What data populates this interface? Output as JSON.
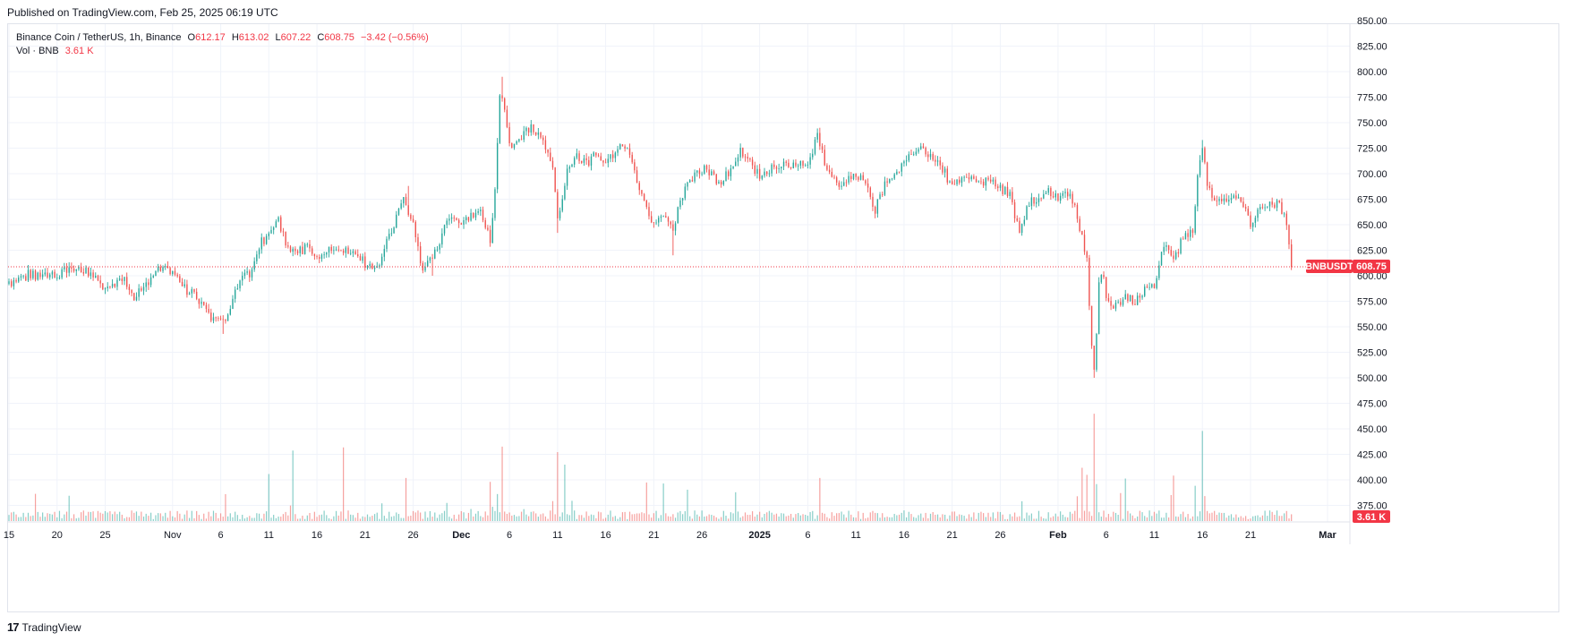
{
  "header": {
    "published": "Published on TradingView.com, Feb 25, 2025 06:19 UTC"
  },
  "legend": {
    "symbol": "Binance Coin / TetherUS, 1h, Binance",
    "o_label": "O",
    "o_value": "612.17",
    "h_label": "H",
    "h_value": "613.02",
    "l_label": "L",
    "l_value": "607.22",
    "c_label": "C",
    "c_value": "608.75",
    "change": "−3.42 (−0.56%)",
    "vol_label": "Vol · BNB",
    "vol_value": "3.61 K"
  },
  "price_tag": {
    "symbol": "BNBUSDT",
    "value": "608.75"
  },
  "volume_tag": {
    "value": "3.61 K"
  },
  "footer": {
    "logo": "17",
    "brand": "TradingView"
  },
  "colors": {
    "up": "#26a69a",
    "down": "#ef5350",
    "last": "#f23645",
    "grid": "#f0f3fa"
  },
  "chart_data": {
    "type": "candlestick",
    "symbol": "BNBUSDT",
    "interval": "1h",
    "y_axis": {
      "range": [
        350,
        850
      ],
      "ticks": [
        850,
        825,
        800,
        775,
        750,
        725,
        700,
        675,
        650,
        625,
        600,
        575,
        550,
        525,
        500,
        475,
        450,
        425,
        400,
        375
      ],
      "tick_labels": [
        "850.00",
        "825.00",
        "800.00",
        "775.00",
        "750.00",
        "725.00",
        "700.00",
        "675.00",
        "650.00",
        "625.00",
        "600.00",
        "575.00",
        "550.00",
        "525.00",
        "500.00",
        "475.00",
        "450.00",
        "425.00",
        "400.00",
        "375.00"
      ]
    },
    "x_axis": {
      "labels": [
        {
          "day": 0,
          "label": "15"
        },
        {
          "day": 5,
          "label": "20"
        },
        {
          "day": 10,
          "label": "25"
        },
        {
          "day": 17,
          "label": "Nov"
        },
        {
          "day": 22,
          "label": "6"
        },
        {
          "day": 27,
          "label": "11"
        },
        {
          "day": 32,
          "label": "16"
        },
        {
          "day": 37,
          "label": "21"
        },
        {
          "day": 42,
          "label": "26"
        },
        {
          "day": 47,
          "label": "Dec",
          "bold": true
        },
        {
          "day": 52,
          "label": "6"
        },
        {
          "day": 57,
          "label": "11"
        },
        {
          "day": 62,
          "label": "16"
        },
        {
          "day": 67,
          "label": "21"
        },
        {
          "day": 72,
          "label": "26"
        },
        {
          "day": 78,
          "label": "2025",
          "bold": true
        },
        {
          "day": 83,
          "label": "6"
        },
        {
          "day": 88,
          "label": "11"
        },
        {
          "day": 93,
          "label": "16"
        },
        {
          "day": 98,
          "label": "21"
        },
        {
          "day": 103,
          "label": "26"
        },
        {
          "day": 109,
          "label": "Feb",
          "bold": true
        },
        {
          "day": 114,
          "label": "6"
        },
        {
          "day": 119,
          "label": "11"
        },
        {
          "day": 124,
          "label": "16"
        },
        {
          "day": 129,
          "label": "21"
        },
        {
          "day": 137,
          "label": "Mar",
          "bold": true
        }
      ],
      "last_day": 133.3,
      "end_day": 140
    },
    "close_path": [
      {
        "d": 0,
        "p": 592
      },
      {
        "d": 2,
        "p": 601
      },
      {
        "d": 4,
        "p": 598
      },
      {
        "d": 6,
        "p": 604
      },
      {
        "d": 7,
        "p": 610
      },
      {
        "d": 9,
        "p": 598
      },
      {
        "d": 10,
        "p": 588
      },
      {
        "d": 12,
        "p": 595
      },
      {
        "d": 13,
        "p": 580
      },
      {
        "d": 15,
        "p": 598
      },
      {
        "d": 16,
        "p": 611
      },
      {
        "d": 18,
        "p": 590
      },
      {
        "d": 20,
        "p": 575
      },
      {
        "d": 21,
        "p": 560
      },
      {
        "d": 22,
        "p": 553
      },
      {
        "d": 23,
        "p": 568
      },
      {
        "d": 24,
        "p": 596
      },
      {
        "d": 25,
        "p": 602
      },
      {
        "d": 26,
        "p": 630
      },
      {
        "d": 27,
        "p": 640
      },
      {
        "d": 28,
        "p": 655
      },
      {
        "d": 29,
        "p": 625
      },
      {
        "d": 30,
        "p": 622
      },
      {
        "d": 31,
        "p": 628
      },
      {
        "d": 32,
        "p": 620
      },
      {
        "d": 34,
        "p": 628
      },
      {
        "d": 36,
        "p": 620
      },
      {
        "d": 37,
        "p": 612
      },
      {
        "d": 38,
        "p": 605
      },
      {
        "d": 39,
        "p": 625
      },
      {
        "d": 40,
        "p": 650
      },
      {
        "d": 41,
        "p": 676
      },
      {
        "d": 42,
        "p": 650
      },
      {
        "d": 43,
        "p": 605
      },
      {
        "d": 44,
        "p": 620
      },
      {
        "d": 45,
        "p": 640
      },
      {
        "d": 46,
        "p": 660
      },
      {
        "d": 47,
        "p": 650
      },
      {
        "d": 48,
        "p": 660
      },
      {
        "d": 49,
        "p": 660
      },
      {
        "d": 50,
        "p": 635
      },
      {
        "d": 50.5,
        "p": 680
      },
      {
        "d": 51,
        "p": 780
      },
      {
        "d": 51.5,
        "p": 765
      },
      {
        "d": 52,
        "p": 725
      },
      {
        "d": 53,
        "p": 735
      },
      {
        "d": 54,
        "p": 745
      },
      {
        "d": 55,
        "p": 740
      },
      {
        "d": 56,
        "p": 720
      },
      {
        "d": 56.5,
        "p": 710
      },
      {
        "d": 57,
        "p": 655
      },
      {
        "d": 58,
        "p": 700
      },
      {
        "d": 59,
        "p": 715
      },
      {
        "d": 60,
        "p": 710
      },
      {
        "d": 61,
        "p": 720
      },
      {
        "d": 62,
        "p": 712
      },
      {
        "d": 63,
        "p": 722
      },
      {
        "d": 64,
        "p": 728
      },
      {
        "d": 65,
        "p": 700
      },
      {
        "d": 66,
        "p": 675
      },
      {
        "d": 67,
        "p": 650
      },
      {
        "d": 68,
        "p": 655
      },
      {
        "d": 69,
        "p": 645
      },
      {
        "d": 70,
        "p": 680
      },
      {
        "d": 71,
        "p": 695
      },
      {
        "d": 72,
        "p": 705
      },
      {
        "d": 73,
        "p": 698
      },
      {
        "d": 74,
        "p": 690
      },
      {
        "d": 75,
        "p": 705
      },
      {
        "d": 76,
        "p": 725
      },
      {
        "d": 77,
        "p": 710
      },
      {
        "d": 78,
        "p": 700
      },
      {
        "d": 79,
        "p": 705
      },
      {
        "d": 80,
        "p": 710
      },
      {
        "d": 81,
        "p": 708
      },
      {
        "d": 82,
        "p": 712
      },
      {
        "d": 83,
        "p": 710
      },
      {
        "d": 84,
        "p": 738
      },
      {
        "d": 84.5,
        "p": 720
      },
      {
        "d": 85,
        "p": 700
      },
      {
        "d": 86,
        "p": 690
      },
      {
        "d": 87,
        "p": 695
      },
      {
        "d": 88,
        "p": 698
      },
      {
        "d": 89,
        "p": 690
      },
      {
        "d": 90,
        "p": 665
      },
      {
        "d": 91,
        "p": 690
      },
      {
        "d": 92,
        "p": 700
      },
      {
        "d": 93,
        "p": 710
      },
      {
        "d": 94,
        "p": 720
      },
      {
        "d": 95,
        "p": 725
      },
      {
        "d": 96,
        "p": 712
      },
      {
        "d": 97,
        "p": 705
      },
      {
        "d": 98,
        "p": 685
      },
      {
        "d": 99,
        "p": 695
      },
      {
        "d": 100,
        "p": 700
      },
      {
        "d": 101,
        "p": 690
      },
      {
        "d": 102,
        "p": 692
      },
      {
        "d": 103,
        "p": 686
      },
      {
        "d": 104,
        "p": 680
      },
      {
        "d": 105,
        "p": 640
      },
      {
        "d": 106,
        "p": 672
      },
      {
        "d": 107,
        "p": 675
      },
      {
        "d": 108,
        "p": 682
      },
      {
        "d": 109,
        "p": 675
      },
      {
        "d": 110,
        "p": 682
      },
      {
        "d": 111,
        "p": 660
      },
      {
        "d": 112,
        "p": 615
      },
      {
        "d": 112.4,
        "p": 540
      },
      {
        "d": 112.8,
        "p": 505
      },
      {
        "d": 113.2,
        "p": 590
      },
      {
        "d": 113.6,
        "p": 605
      },
      {
        "d": 114,
        "p": 575
      },
      {
        "d": 115,
        "p": 570
      },
      {
        "d": 116,
        "p": 582
      },
      {
        "d": 117,
        "p": 575
      },
      {
        "d": 118,
        "p": 585
      },
      {
        "d": 119,
        "p": 592
      },
      {
        "d": 120,
        "p": 630
      },
      {
        "d": 121,
        "p": 612
      },
      {
        "d": 122,
        "p": 640
      },
      {
        "d": 123,
        "p": 645
      },
      {
        "d": 123.5,
        "p": 700
      },
      {
        "d": 124,
        "p": 725
      },
      {
        "d": 124.5,
        "p": 690
      },
      {
        "d": 125,
        "p": 675
      },
      {
        "d": 126,
        "p": 670
      },
      {
        "d": 127,
        "p": 680
      },
      {
        "d": 128,
        "p": 675
      },
      {
        "d": 129,
        "p": 650
      },
      {
        "d": 130,
        "p": 665
      },
      {
        "d": 131,
        "p": 668
      },
      {
        "d": 132,
        "p": 670
      },
      {
        "d": 132.5,
        "p": 660
      },
      {
        "d": 133,
        "p": 630
      },
      {
        "d": 133.3,
        "p": 608.75
      }
    ],
    "spikes_high": [
      {
        "d": 51.2,
        "p": 795
      },
      {
        "d": 84.2,
        "p": 745
      },
      {
        "d": 124.1,
        "p": 733
      },
      {
        "d": 41.5,
        "p": 688
      }
    ],
    "spikes_low": [
      {
        "d": 112.8,
        "p": 500
      },
      {
        "d": 69.0,
        "p": 620
      },
      {
        "d": 22.3,
        "p": 543
      },
      {
        "d": 57.1,
        "p": 642
      },
      {
        "d": 44.0,
        "p": 600
      }
    ],
    "volume": {
      "scale_max_k": 160,
      "base_k": 8,
      "spikes_k": [
        {
          "d": 112.8,
          "v": 137
        },
        {
          "d": 124.1,
          "v": 115
        },
        {
          "d": 51.2,
          "v": 95
        },
        {
          "d": 56.9,
          "v": 88
        },
        {
          "d": 29.5,
          "v": 90
        },
        {
          "d": 34.7,
          "v": 94
        },
        {
          "d": 27.1,
          "v": 60
        },
        {
          "d": 111.6,
          "v": 68
        },
        {
          "d": 84.3,
          "v": 55
        },
        {
          "d": 70.5,
          "v": 40
        },
        {
          "d": 41.3,
          "v": 55
        },
        {
          "d": 57.8,
          "v": 72
        },
        {
          "d": 123.3,
          "v": 45
        },
        {
          "d": 121.1,
          "v": 58
        },
        {
          "d": 50.1,
          "v": 50
        }
      ]
    },
    "last_price": 608.75,
    "last_volume": "3.61 K"
  }
}
